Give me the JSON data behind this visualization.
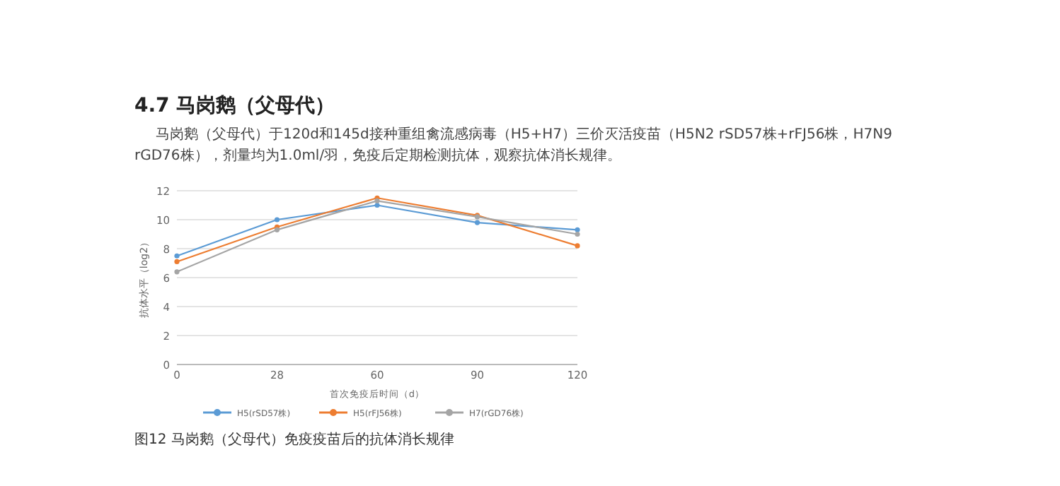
{
  "chart_data": {
    "type": "line",
    "title": "4.7 马岗鹅（父母代）",
    "subtitle": "马岗鹅（父母代）于120d和145d接种重组禽流感病毒（H5+H7）三价灭活疫苗（H5N2 rSD57株+rFJ56株，H7N9 rGD76株），剂量均为1.0ml/羽，免疫后定期检测抗体，观察抗体消长规律。",
    "xlabel": "首次免疫后时间（d）",
    "ylabel": "抗体水平（log2）",
    "annotations": [
      "图12 马岗鹅（父母代）免疫疫苗后的抗体消长规律"
    ],
    "categories": [
      "0",
      "28",
      "60",
      "90",
      "120"
    ],
    "series": [
      {
        "name": "H5(rSD57株)",
        "color": "#5b9bd5",
        "values": [
          7.5,
          10.0,
          11.0,
          9.8,
          9.3
        ]
      },
      {
        "name": "H5(rFJ56株)",
        "color": "#ed7d31",
        "values": [
          7.1,
          9.5,
          11.5,
          10.3,
          8.2
        ]
      },
      {
        "name": "H7(rGD76株)",
        "color": "#a5a5a5",
        "values": [
          6.4,
          9.3,
          11.3,
          10.2,
          9.0
        ]
      }
    ],
    "ylim": [
      0,
      12
    ],
    "yticks": [
      0,
      2,
      4,
      6,
      8,
      10,
      12
    ],
    "grid": "y",
    "legend": "bottom",
    "marker": "circle",
    "line_style": "solid"
  }
}
